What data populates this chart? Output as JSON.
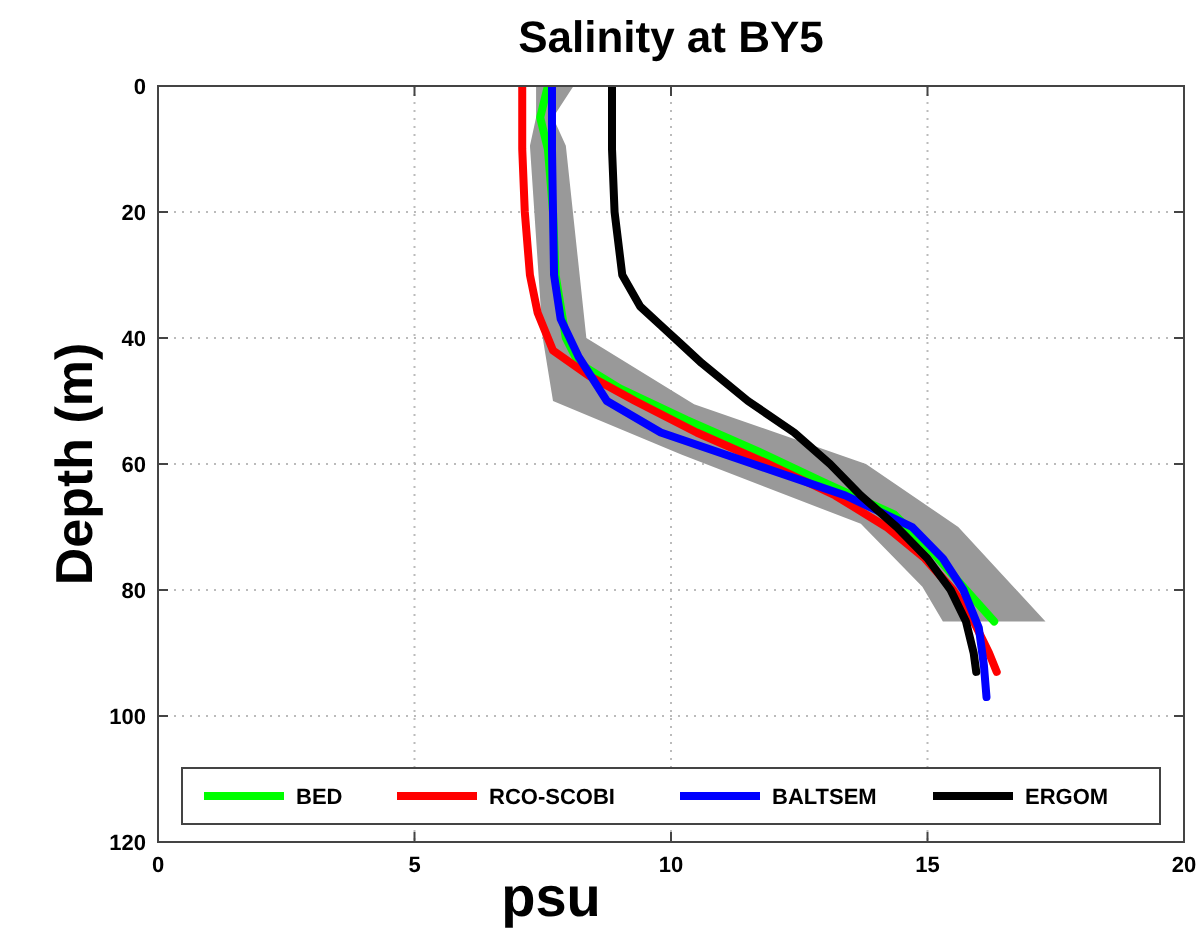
{
  "chart_data": {
    "type": "line",
    "title": "Salinity at BY5",
    "xlabel": "psu",
    "ylabel": "Depth (m)",
    "xlim": [
      0,
      20
    ],
    "ylim": [
      120,
      0
    ],
    "xticks": [
      0,
      5,
      10,
      15,
      20
    ],
    "yticks": [
      0,
      20,
      40,
      60,
      80,
      100,
      120
    ],
    "grid": true,
    "legend": "bottom",
    "line_style": "solid",
    "marker": "none",
    "series": [
      {
        "type": "area",
        "color": "#999999",
        "x": [
          8.1,
          7.7,
          7.95,
          8.35,
          10.45,
          13.8,
          15.6,
          17.3,
          15.3,
          14.9,
          13.7,
          10.2,
          7.7,
          7.5,
          7.25,
          7.37,
          7.37
        ],
        "values": [
          0,
          5,
          9.5,
          40,
          50.5,
          60,
          70,
          85,
          85,
          79.5,
          69.5,
          58.5,
          50,
          40,
          9.5,
          5,
          0
        ]
      },
      {
        "name": "BED",
        "color": "#00ff00",
        "x": [
          7.6,
          7.45,
          7.6,
          7.7,
          7.75,
          7.95,
          8.2,
          9.0,
          10.3,
          11.7,
          13.0,
          14.35,
          15.1,
          15.75,
          16.3
        ],
        "values": [
          0,
          5,
          10,
          20,
          30,
          40,
          44,
          48,
          53,
          58,
          63,
          68,
          74,
          80,
          85
        ]
      },
      {
        "name": "RCO-SCOBI",
        "color": "#ff0000",
        "x": [
          7.1,
          7.1,
          7.15,
          7.25,
          7.4,
          7.7,
          8.4,
          9.3,
          10.5,
          11.9,
          13.2,
          14.2,
          14.95,
          15.5,
          15.9,
          16.2,
          16.35
        ],
        "values": [
          0,
          10,
          20,
          30,
          36,
          42,
          46,
          50,
          55,
          60,
          65,
          70,
          75,
          80,
          85,
          90,
          93
        ]
      },
      {
        "name": "BALTSEM",
        "color": "#0000ff",
        "x": [
          7.68,
          7.68,
          7.7,
          7.72,
          7.85,
          8.2,
          8.75,
          9.8,
          11.6,
          13.4,
          14.7,
          15.3,
          15.7,
          16.0,
          16.1,
          16.15
        ],
        "values": [
          0,
          10,
          20,
          30,
          37,
          43,
          50,
          55,
          60,
          65,
          70,
          75,
          80,
          86,
          92,
          97
        ]
      },
      {
        "name": "ERGOM",
        "color": "#000000",
        "x": [
          8.85,
          8.85,
          8.9,
          9.05,
          9.4,
          9.8,
          10.2,
          10.6,
          11.5,
          12.4,
          13.1,
          13.7,
          14.4,
          15.0,
          15.45,
          15.75,
          15.9,
          15.95
        ],
        "values": [
          0,
          10,
          20,
          30,
          35,
          38,
          41,
          44,
          50,
          55,
          60,
          65,
          70,
          75,
          80,
          85,
          90,
          93
        ]
      }
    ]
  }
}
